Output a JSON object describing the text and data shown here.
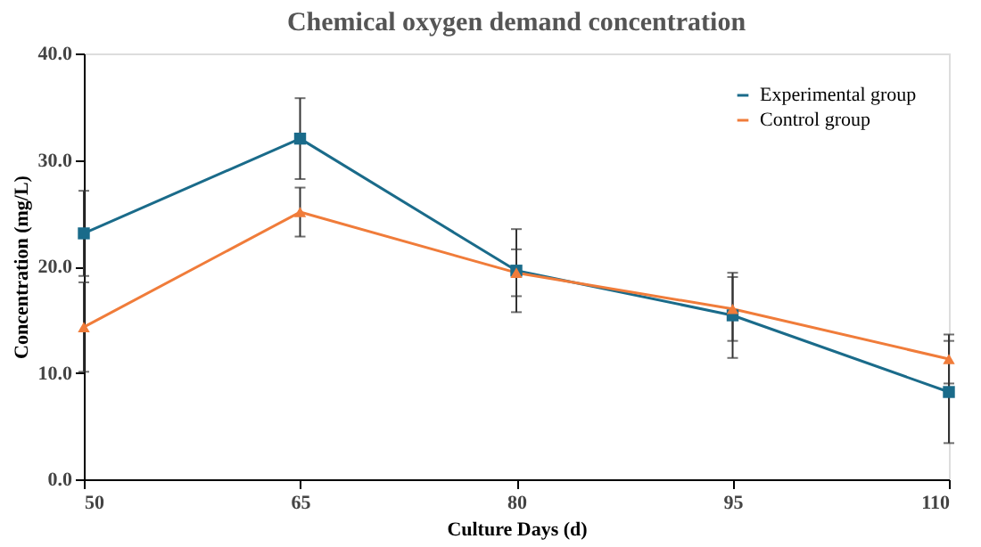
{
  "chart_data": {
    "type": "line",
    "title": "Chemical oxygen demand concentration",
    "xlabel": "Culture Days (d)",
    "ylabel": "Concentration (mg/L)",
    "categories": [
      "50",
      "65",
      "80",
      "95",
      "110"
    ],
    "series": [
      {
        "name": "Experimental group",
        "color": "#1a6b8a",
        "marker": "square",
        "values": [
          23.1,
          32.0,
          19.6,
          15.4,
          8.2
        ],
        "errors": [
          4.0,
          3.8,
          3.9,
          4.0,
          4.8
        ]
      },
      {
        "name": "Control group",
        "color": "#f07c3a",
        "marker": "triangle",
        "values": [
          14.3,
          25.1,
          19.4,
          16.0,
          11.3
        ],
        "errors": [
          4.2,
          2.3,
          2.2,
          3.0,
          2.3
        ]
      }
    ],
    "ylim": [
      0,
      40
    ],
    "yticks": [
      {
        "value": 0,
        "label": "0.0"
      },
      {
        "value": 10,
        "label": "10.0"
      },
      {
        "value": 20,
        "label": "20.0"
      },
      {
        "value": 30,
        "label": "30.0"
      },
      {
        "value": 40,
        "label": "40.0"
      }
    ],
    "grid": false,
    "legend": "top right",
    "line_style": "solid"
  }
}
